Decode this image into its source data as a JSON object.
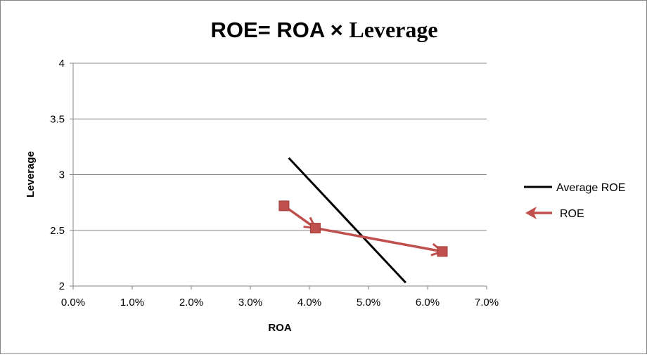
{
  "chart_data": {
    "type": "scatter",
    "title_part1": "ROE= ROA × ",
    "title_part2": "Leverage",
    "xlabel": "ROA",
    "ylabel": "Leverage",
    "xlim": [
      0,
      0.07
    ],
    "ylim": [
      2,
      4
    ],
    "x_ticks": [
      "0.0%",
      "1.0%",
      "2.0%",
      "3.0%",
      "4.0%",
      "5.0%",
      "6.0%",
      "7.0%"
    ],
    "y_ticks": [
      "2",
      "2.5",
      "3",
      "3.5",
      "4"
    ],
    "grid": "horizontal",
    "legend_position": "right",
    "series": [
      {
        "name": "Average ROE",
        "color": "#000000",
        "style": "line",
        "points": [
          [
            0.0365,
            3.15
          ],
          [
            0.0563,
            2.03
          ]
        ]
      },
      {
        "name": "ROE",
        "color": "#c0504d",
        "style": "line-square-markers-arrows",
        "points": [
          [
            0.0357,
            2.72
          ],
          [
            0.041,
            2.52
          ],
          [
            0.0625,
            2.31
          ]
        ]
      }
    ]
  }
}
